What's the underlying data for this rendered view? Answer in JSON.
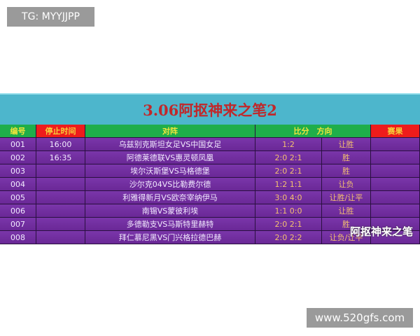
{
  "overlay": {
    "tg_label": "TG: MYYJJPP",
    "site_label": "www.520gfs.com",
    "watermark": "阿抠神来之笔"
  },
  "board": {
    "title": "3.06阿抠神来之笔2",
    "headers": {
      "id": "编号",
      "stop_time": "停止时间",
      "match": "对阵",
      "score_direction": "比分　方向",
      "result": "赛果"
    },
    "rows": [
      {
        "id": "001",
        "time": "16:00",
        "match": "乌兹别克斯坦女足VS中国女足",
        "score": "1:2",
        "direction": "让胜",
        "result": ""
      },
      {
        "id": "002",
        "time": "16:35",
        "match": "阿德莱德联VS惠灵顿凤凰",
        "score": "2:0 2:1",
        "direction": "胜",
        "result": ""
      },
      {
        "id": "003",
        "time": "",
        "match": "埃尔沃斯堡VS马格德堡",
        "score": "2:0 2:1",
        "direction": "胜",
        "result": ""
      },
      {
        "id": "004",
        "time": "",
        "match": "沙尔克04VS比勒费尔德",
        "score": "1:2 1:1",
        "direction": "让负",
        "result": ""
      },
      {
        "id": "005",
        "time": "",
        "match": "利雅得新月VS欧奈宰纳伊马",
        "score": "3:0 4:0",
        "direction": "让胜/让平",
        "result": ""
      },
      {
        "id": "006",
        "time": "",
        "match": "南锡VS蒙彼利埃",
        "score": "1:1 0:0",
        "direction": "让胜",
        "result": ""
      },
      {
        "id": "007",
        "time": "",
        "match": "多德勒支VS马斯特里赫特",
        "score": "2:0 2:1",
        "direction": "胜",
        "result": ""
      },
      {
        "id": "008",
        "time": "",
        "match": "拜仁慕尼黑VS门兴格拉德巴赫",
        "score": "2:0 2:2",
        "direction": "让负/让平",
        "result": ""
      }
    ]
  }
}
